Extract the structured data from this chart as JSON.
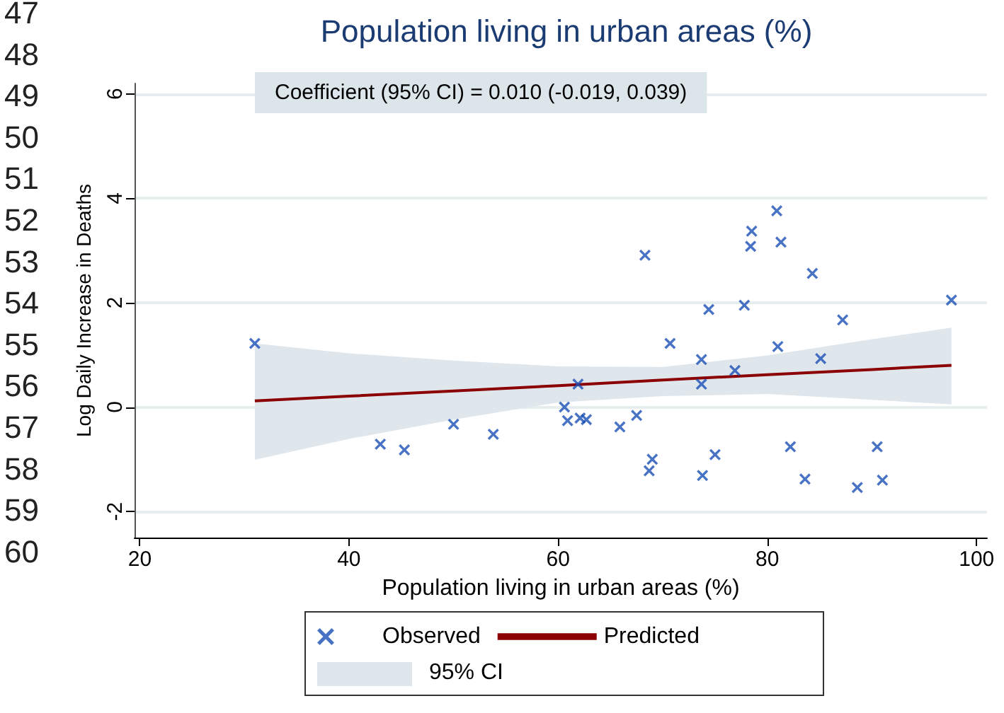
{
  "chart_data": {
    "type": "scatter",
    "title": "Population living in urban areas (%)",
    "xlabel": "Population living in urban areas (%)",
    "ylabel": "Log Daily Increase in Deaths",
    "annotations": [
      "Coefficient (95% CI) = 0.010 (-0.019, 0.039)",
      "95% CI",
      "47",
      "48",
      "49",
      "50",
      "51",
      "52",
      "53",
      "54",
      "55",
      "56",
      "57",
      "58",
      "59",
      "60"
    ],
    "series": [
      {
        "name": "Observed",
        "color": "#1a4fb4",
        "marker": "cross",
        "x": [
          31.0,
          43.0,
          45.3,
          50.0,
          53.8,
          60.6,
          60.9,
          61.9,
          62.1,
          62.7,
          65.9,
          67.5,
          68.3,
          69.0,
          68.7,
          70.7,
          74.4,
          73.7,
          73.7,
          73.8,
          75.0,
          76.9,
          77.8,
          78.4,
          78.5,
          80.9,
          81.3,
          81.0,
          82.2,
          83.6,
          84.3,
          85.1,
          87.2,
          88.6,
          90.5,
          91.0,
          97.6
        ],
        "values": [
          1.22,
          -0.71,
          -0.82,
          -0.33,
          -0.52,
          0.0,
          -0.26,
          0.44,
          -0.21,
          -0.24,
          -0.38,
          -0.16,
          2.91,
          -1.0,
          -1.22,
          1.22,
          1.87,
          0.91,
          0.44,
          -1.31,
          -0.91,
          0.7,
          1.95,
          3.08,
          3.37,
          3.76,
          3.16,
          1.16,
          -0.76,
          -1.38,
          2.56,
          0.93,
          1.67,
          -1.54,
          -0.76,
          -1.4,
          2.05
        ]
      },
      {
        "name": "Predicted",
        "type": "line",
        "color": "#8b0000",
        "marker": "none",
        "line_style": "solid",
        "x": [
          31,
          40,
          50,
          60,
          70,
          80,
          90,
          97.6
        ],
        "values": [
          0.12,
          0.21,
          0.31,
          0.41,
          0.52,
          0.62,
          0.72,
          0.8
        ],
        "lower": [
          -1.01,
          -0.61,
          -0.24,
          0.09,
          0.21,
          0.25,
          0.14,
          0.05
        ],
        "upper": [
          1.22,
          1.03,
          0.89,
          0.78,
          0.77,
          0.99,
          1.3,
          1.52
        ]
      }
    ],
    "xlim": [
      19.5,
      101
    ],
    "xticks": [
      20,
      40,
      60,
      80,
      100
    ],
    "ylim": [
      -2.5,
      6.2
    ],
    "yticks": [
      -2,
      0,
      2,
      4,
      6
    ],
    "grid": "y",
    "legend": "bottom"
  }
}
